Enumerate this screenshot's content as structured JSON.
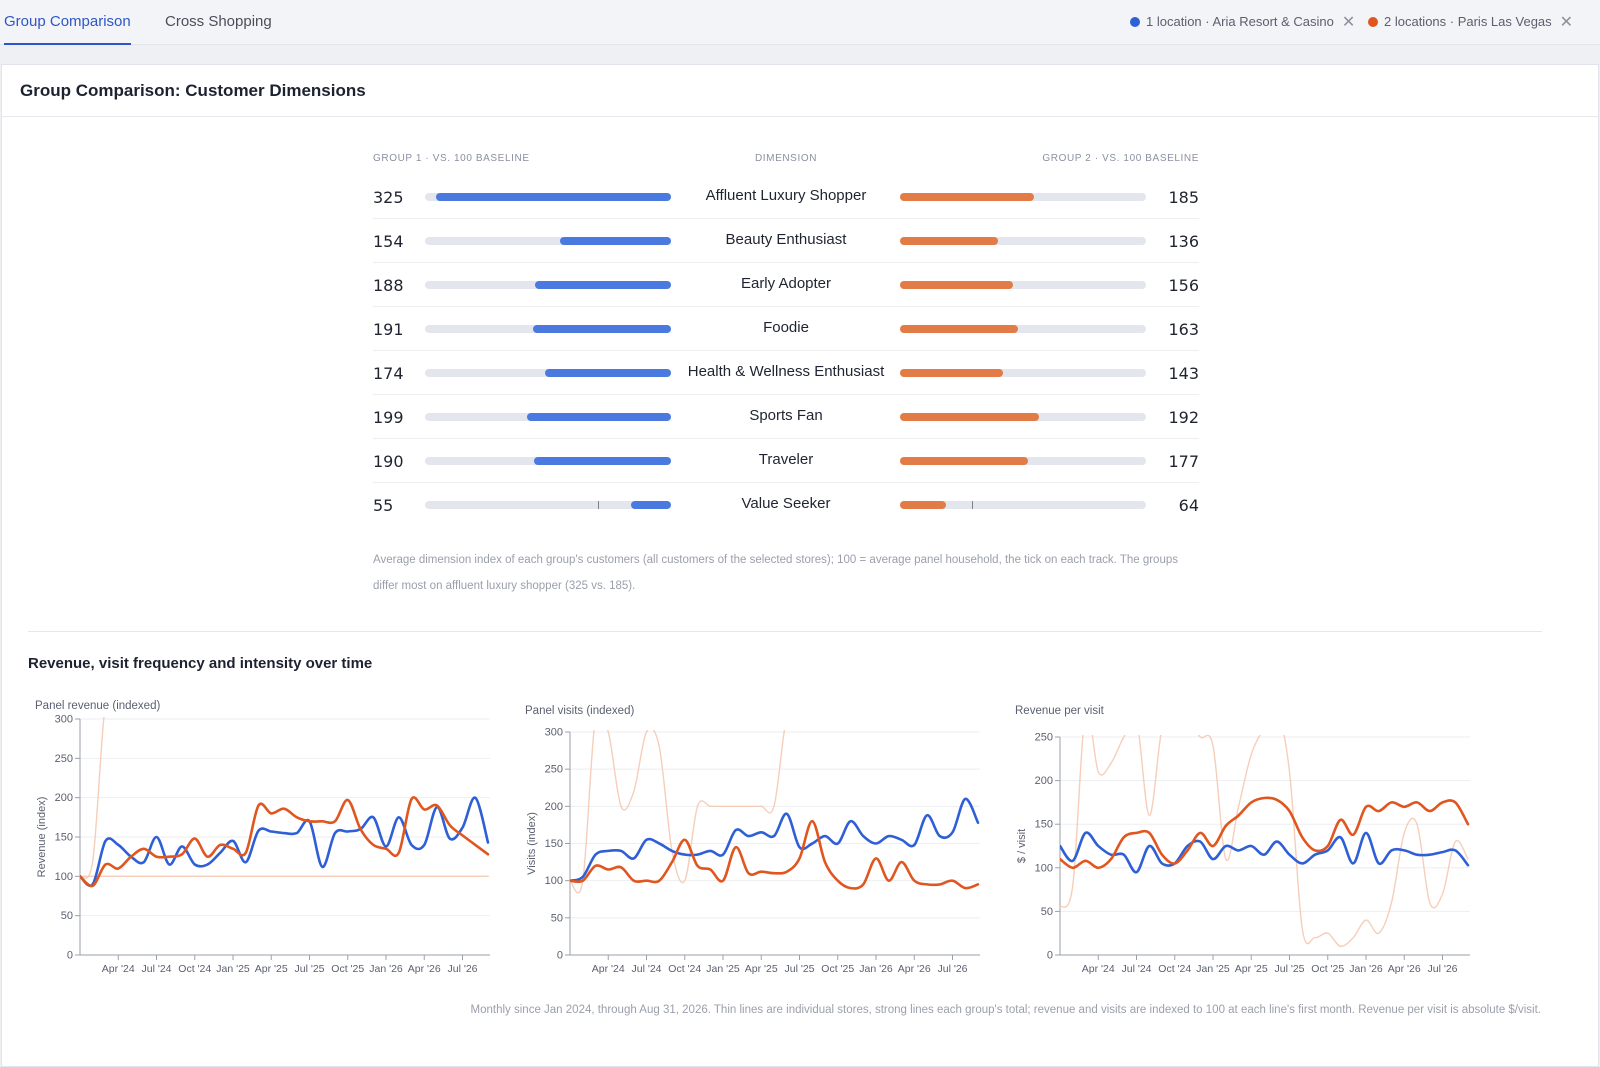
{
  "tabs": [
    {
      "label": "Group Comparison",
      "active": true
    },
    {
      "label": "Cross Shopping",
      "active": false
    }
  ],
  "groups": [
    {
      "label": "1 location · Aria Resort & Casino",
      "color": "#2f5fd6"
    },
    {
      "label": "2 locations · Paris Las Vegas",
      "color": "#e0561f"
    }
  ],
  "card": {
    "title": "Group Comparison: Customer Dimensions"
  },
  "dimensions": {
    "header_left": "Group 1 · vs. 100 baseline",
    "header_mid": "Dimension",
    "header_right": "Group 2 · vs. 100 baseline",
    "scale_max": 325,
    "rows": [
      {
        "name": "Affluent Luxury Shopper",
        "g1": 325,
        "g2": 185
      },
      {
        "name": "Beauty Enthusiast",
        "g1": 154,
        "g2": 136
      },
      {
        "name": "Early Adopter",
        "g1": 188,
        "g2": 156
      },
      {
        "name": "Foodie",
        "g1": 191,
        "g2": 163
      },
      {
        "name": "Health & Wellness Enthusiast",
        "g1": 174,
        "g2": 143
      },
      {
        "name": "Sports Fan",
        "g1": 199,
        "g2": 192
      },
      {
        "name": "Traveler",
        "g1": 190,
        "g2": 177
      },
      {
        "name": "Value Seeker",
        "g1": 55,
        "g2": 64
      }
    ],
    "note": "Average dimension index of each group's customers (all customers of the selected stores); 100 = average panel household, the tick on each track. The groups differ most on affluent luxury shopper (325 vs. 185)."
  },
  "trends": {
    "title": "Revenue, visit frequency and intensity over time",
    "footnote": "Monthly since Jan 2024, through Aug 31, 2026. Thin lines are individual stores, strong lines each group's total; revenue and visits are indexed to 100 at each line's first month. Revenue per visit is absolute $/visit."
  },
  "chart_data": [
    {
      "type": "line",
      "title": "Panel revenue (indexed)",
      "ylabel": "Revenue (index)",
      "ylim": [
        0,
        300
      ],
      "yticks": [
        0,
        50,
        100,
        150,
        200,
        250,
        300
      ],
      "x_tick_labels": [
        "Apr '24",
        "Jul '24",
        "Oct '24",
        "Jan '25",
        "Apr '25",
        "Jul '25",
        "Oct '25",
        "Jan '26",
        "Apr '26",
        "Jul '26"
      ],
      "x_tick_months": [
        3,
        6,
        9,
        12,
        15,
        18,
        21,
        24,
        27,
        30
      ],
      "grid": true,
      "series": [
        {
          "group": 1,
          "role": "group total",
          "color": "#2f5fd6",
          "values": [
            100,
            90,
            145,
            140,
            125,
            118,
            150,
            115,
            138,
            115,
            115,
            130,
            145,
            118,
            158,
            157,
            155,
            155,
            170,
            112,
            155,
            157,
            160,
            175,
            138,
            175,
            140,
            140,
            188,
            148,
            162,
            200,
            143
          ]
        },
        {
          "group": 2,
          "role": "group total",
          "color": "#e0561f",
          "values": [
            100,
            88,
            115,
            110,
            125,
            135,
            125,
            125,
            128,
            148,
            125,
            140,
            135,
            130,
            190,
            180,
            186,
            175,
            170,
            170,
            170,
            197,
            160,
            140,
            135,
            130,
            198,
            185,
            190,
            165,
            152,
            140,
            128
          ]
        },
        {
          "group": 2,
          "role": "store",
          "color": "#f5c9b2",
          "values": [
            100,
            120,
            320,
            320,
            320,
            320,
            320,
            320,
            320,
            320,
            320,
            320,
            320,
            320,
            320,
            320,
            320,
            320,
            320,
            320,
            320,
            320,
            320,
            320,
            320,
            320,
            320,
            320,
            320,
            320,
            320,
            320,
            320
          ]
        },
        {
          "group": 2,
          "role": "store",
          "color": "#f5c9b2",
          "values": [
            100,
            100,
            100,
            100,
            100,
            100,
            100,
            100,
            100,
            100,
            100,
            100,
            100,
            100,
            100,
            100,
            100,
            100,
            100,
            100,
            100,
            100,
            100,
            100,
            100,
            100,
            100,
            100,
            100,
            100,
            100,
            100,
            100
          ]
        }
      ]
    },
    {
      "type": "line",
      "title": "Panel visits (indexed)",
      "ylabel": "Visits (index)",
      "ylim": [
        0,
        300
      ],
      "yticks": [
        0,
        50,
        100,
        150,
        200,
        250,
        300
      ],
      "x_tick_labels": [
        "Apr '24",
        "Jul '24",
        "Oct '24",
        "Jan '25",
        "Apr '25",
        "Jul '25",
        "Oct '25",
        "Jan '26",
        "Apr '26",
        "Jul '26"
      ],
      "x_tick_months": [
        3,
        6,
        9,
        12,
        15,
        18,
        21,
        24,
        27,
        30
      ],
      "grid": true,
      "series": [
        {
          "group": 1,
          "role": "group total",
          "color": "#2f5fd6",
          "values": [
            100,
            105,
            135,
            140,
            140,
            130,
            155,
            150,
            140,
            135,
            135,
            140,
            135,
            168,
            160,
            165,
            160,
            190,
            145,
            150,
            160,
            150,
            180,
            160,
            150,
            160,
            155,
            148,
            188,
            160,
            165,
            210,
            178
          ]
        },
        {
          "group": 2,
          "role": "group total",
          "color": "#e0561f",
          "values": [
            100,
            100,
            120,
            115,
            118,
            100,
            100,
            100,
            125,
            155,
            120,
            115,
            100,
            145,
            110,
            112,
            110,
            112,
            130,
            180,
            125,
            100,
            90,
            95,
            130,
            100,
            125,
            100,
            95,
            95,
            100,
            90,
            95
          ]
        },
        {
          "group": 2,
          "role": "store",
          "color": "#f5c9b2",
          "values": [
            100,
            100,
            320,
            300,
            200,
            220,
            300,
            280,
            140,
            100,
            200,
            200,
            200,
            200,
            200,
            200,
            200,
            320,
            320,
            320,
            320,
            320,
            320,
            320,
            320,
            320,
            320,
            320,
            320,
            320,
            320,
            320,
            320
          ]
        }
      ]
    },
    {
      "type": "line",
      "title": "Revenue per visit",
      "ylabel": "$ / visit",
      "ylim": [
        0,
        260
      ],
      "yticks": [
        0,
        50,
        100,
        150,
        200,
        250
      ],
      "x_tick_labels": [
        "Apr '24",
        "Jul '24",
        "Oct '24",
        "Jan '25",
        "Apr '25",
        "Jul '25",
        "Oct '25",
        "Jan '26",
        "Apr '26",
        "Jul '26"
      ],
      "x_tick_months": [
        3,
        6,
        9,
        12,
        15,
        18,
        21,
        24,
        27,
        30
      ],
      "grid": true,
      "series": [
        {
          "group": 1,
          "role": "group total",
          "color": "#2f5fd6",
          "values": [
            125,
            108,
            140,
            125,
            115,
            115,
            95,
            125,
            105,
            105,
            125,
            130,
            110,
            125,
            120,
            125,
            115,
            130,
            115,
            105,
            115,
            120,
            135,
            105,
            140,
            105,
            120,
            120,
            115,
            115,
            118,
            120,
            103
          ]
        },
        {
          "group": 2,
          "role": "group total",
          "color": "#e0561f",
          "values": [
            110,
            100,
            108,
            100,
            110,
            135,
            140,
            140,
            115,
            105,
            120,
            140,
            125,
            148,
            160,
            175,
            180,
            178,
            165,
            135,
            120,
            125,
            155,
            138,
            170,
            165,
            175,
            170,
            175,
            165,
            175,
            175,
            150
          ]
        },
        {
          "group": 2,
          "role": "store",
          "color": "#f5c9b2",
          "values": [
            55,
            80,
            280,
            210,
            220,
            250,
            270,
            160,
            260,
            280,
            270,
            250,
            240,
            110,
            170,
            230,
            260,
            280,
            210,
            30,
            20,
            25,
            10,
            20,
            40,
            25,
            60,
            140,
            150,
            60,
            70,
            130,
            110
          ]
        }
      ]
    }
  ]
}
